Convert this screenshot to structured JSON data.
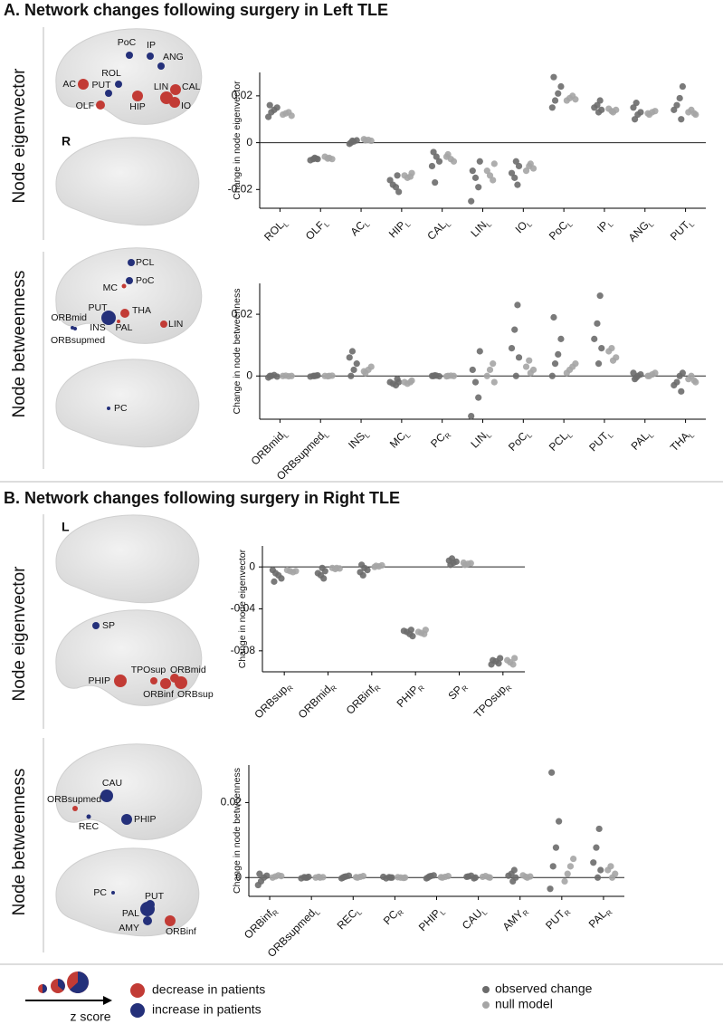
{
  "sections": [
    {
      "title": "A. Network changes following surgery in Left TLE",
      "hemisphere": "R"
    },
    {
      "title": "B. Network changes following surgery in Right TLE",
      "hemisphere": "L"
    }
  ],
  "legend": {
    "z_label": "z score",
    "nodes": [
      {
        "label": "decrease in patients",
        "color": "#c23b35"
      },
      {
        "label": "increase in patients",
        "color": "#24307a"
      }
    ],
    "series": [
      {
        "name": "observed change",
        "color": "#6b6b6b"
      },
      {
        "name": "null model",
        "color": "#a5a5a5"
      }
    ]
  },
  "chart_data": [
    {
      "type": "strip",
      "row_label": "Node eigenvector",
      "ylabel": "Change in node eigenvector",
      "ylim": [
        -0.028,
        0.03
      ],
      "yticks": [
        -0.02,
        0,
        0.02
      ],
      "zero_line": true,
      "categories": [
        "ROL",
        "OLF",
        "AC",
        "HIP",
        "CAL",
        "LIN",
        "IO",
        "PoC",
        "IP",
        "ANG",
        "PUT"
      ],
      "subscripts": [
        "L",
        "L",
        "L",
        "L",
        "L",
        "L",
        "L",
        "L",
        "L",
        "L",
        "L"
      ],
      "series": [
        {
          "color": "#6b6b6b",
          "values": [
            [
              0.011,
              0.013,
              0.014,
              0.015,
              0.016
            ],
            [
              -0.0065,
              -0.007,
              -0.0075,
              -0.007,
              -0.0068
            ],
            [
              0.0,
              0.0005,
              0.001,
              -0.0005,
              0.0008
            ],
            [
              -0.014,
              -0.016,
              -0.018,
              -0.019,
              -0.021
            ],
            [
              -0.004,
              -0.006,
              -0.008,
              -0.01,
              -0.017
            ],
            [
              -0.008,
              -0.012,
              -0.015,
              -0.019,
              -0.025
            ],
            [
              -0.008,
              -0.01,
              -0.013,
              -0.015,
              -0.018
            ],
            [
              0.015,
              0.018,
              0.021,
              0.024,
              0.028
            ],
            [
              0.013,
              0.014,
              0.015,
              0.016,
              0.018
            ],
            [
              0.01,
              0.012,
              0.013,
              0.015,
              0.017
            ],
            [
              0.01,
              0.014,
              0.016,
              0.019,
              0.024
            ]
          ]
        },
        {
          "color": "#a5a5a5",
          "values": [
            [
              0.012,
              0.0125,
              0.013,
              0.0115
            ],
            [
              -0.0065,
              -0.007,
              -0.006,
              -0.0068
            ],
            [
              0.001,
              0.0012,
              0.0008,
              0.0015
            ],
            [
              -0.013,
              -0.014,
              -0.015,
              -0.0145
            ],
            [
              -0.005,
              -0.007,
              -0.008,
              -0.006
            ],
            [
              -0.009,
              -0.012,
              -0.014,
              -0.016
            ],
            [
              -0.009,
              -0.011,
              -0.012,
              -0.01
            ],
            [
              0.018,
              0.019,
              0.02,
              0.0185
            ],
            [
              0.013,
              0.014,
              0.0145,
              0.0135
            ],
            [
              0.012,
              0.013,
              0.0135,
              0.0125
            ],
            [
              0.012,
              0.013,
              0.014,
              0.0125
            ]
          ]
        }
      ],
      "nodes": [
        {
          "label": "PoC",
          "color": "#24307a"
        },
        {
          "label": "IP",
          "color": "#24307a"
        },
        {
          "label": "ANG",
          "color": "#24307a"
        },
        {
          "label": "ROL",
          "color": "#24307a"
        },
        {
          "label": "AC",
          "color": "#c23b35"
        },
        {
          "label": "PUT",
          "color": "#24307a"
        },
        {
          "label": "LIN",
          "color": "#c23b35"
        },
        {
          "label": "CAL",
          "color": "#c23b35"
        },
        {
          "label": "HIP",
          "color": "#c23b35"
        },
        {
          "label": "OLF",
          "color": "#c23b35"
        },
        {
          "label": "IO",
          "color": "#c23b35"
        }
      ]
    },
    {
      "type": "strip",
      "row_label": "Node betweenness",
      "ylabel": "Change in node betweenness",
      "ylim": [
        -0.014,
        0.03
      ],
      "yticks": [
        0,
        0.02
      ],
      "zero_line": true,
      "categories": [
        "ORBmid",
        "ORBsupmed",
        "INS",
        "MC",
        "PC",
        "LIN",
        "PoC",
        "PCL",
        "PUT",
        "PAL",
        "THA"
      ],
      "subscripts": [
        "L",
        "L",
        "L",
        "L",
        "R",
        "L",
        "L",
        "L",
        "L",
        "L",
        "L"
      ],
      "series": [
        {
          "color": "#6b6b6b",
          "values": [
            [
              -0.0005,
              0,
              0.0003,
              -0.0002,
              0
            ],
            [
              0,
              0.0002,
              -0.0002,
              0,
              0.0001
            ],
            [
              0,
              0.002,
              0.004,
              0.006,
              0.008
            ],
            [
              -0.001,
              -0.002,
              -0.0025,
              -0.003,
              -0.002
            ],
            [
              0,
              0.0001,
              -0.0001,
              0,
              0.0002
            ],
            [
              0.008,
              0.002,
              -0.002,
              -0.007,
              -0.013
            ],
            [
              0,
              0.006,
              0.009,
              0.015,
              0.023
            ],
            [
              0,
              0.004,
              0.007,
              0.012,
              0.019
            ],
            [
              0.004,
              0.009,
              0.012,
              0.017,
              0.026
            ],
            [
              -0.001,
              0,
              0.0005,
              0.001,
              -0.0005
            ],
            [
              -0.005,
              -0.003,
              -0.002,
              0,
              0.001
            ]
          ]
        },
        {
          "color": "#a5a5a5",
          "values": [
            [
              0,
              0.0001,
              -0.0001,
              0
            ],
            [
              0,
              0.0001,
              0,
              -0.0001
            ],
            [
              0.001,
              0.002,
              0.003,
              0.0015
            ],
            [
              -0.0015,
              -0.002,
              -0.0025,
              -0.002
            ],
            [
              0,
              0.0001,
              0,
              -0.0001
            ],
            [
              -0.002,
              0,
              0.002,
              0.004
            ],
            [
              0.001,
              0.002,
              0.003,
              0.005
            ],
            [
              0.001,
              0.002,
              0.003,
              0.004
            ],
            [
              0.005,
              0.006,
              0.008,
              0.009
            ],
            [
              0,
              0.0005,
              0.001,
              0
            ],
            [
              -0.002,
              -0.001,
              0,
              -0.0015
            ]
          ]
        }
      ],
      "nodes": [
        {
          "label": "PCL",
          "color": "#24307a"
        },
        {
          "label": "PoC",
          "color": "#24307a"
        },
        {
          "label": "MC",
          "color": "#c23b35"
        },
        {
          "label": "PUT",
          "color": "#24307a"
        },
        {
          "label": "INS",
          "color": "#24307a"
        },
        {
          "label": "THA",
          "color": "#c23b35"
        },
        {
          "label": "PAL",
          "color": "#c23b35"
        },
        {
          "label": "ORBmid",
          "color": "#24307a"
        },
        {
          "label": "ORBsupmed",
          "color": "#24307a"
        },
        {
          "label": "LIN",
          "color": "#c23b35"
        },
        {
          "label": "PC",
          "color": "#24307a"
        }
      ]
    },
    {
      "type": "strip",
      "row_label": "Node eigenvector",
      "ylabel": "Change in node eigenvector",
      "ylim": [
        -0.1,
        0.02
      ],
      "yticks": [
        -0.08,
        -0.04,
        0
      ],
      "zero_line": true,
      "categories": [
        "ORBsup",
        "ORBmid",
        "ORBinf",
        "PHIP",
        "SP",
        "TPOsup"
      ],
      "subscripts": [
        "R",
        "R",
        "R",
        "R",
        "R",
        "R"
      ],
      "series": [
        {
          "color": "#6b6b6b",
          "values": [
            [
              -0.003,
              -0.006,
              -0.008,
              -0.011,
              -0.014
            ],
            [
              -0.001,
              -0.004,
              -0.006,
              -0.008,
              -0.011
            ],
            [
              0.002,
              -0.001,
              -0.003,
              -0.005,
              -0.008
            ],
            [
              -0.06,
              -0.061,
              -0.062,
              -0.064,
              -0.066
            ],
            [
              0.002,
              0.004,
              0.005,
              0.006,
              0.008
            ],
            [
              -0.087,
              -0.089,
              -0.09,
              -0.092,
              -0.093
            ]
          ]
        },
        {
          "color": "#a5a5a5",
          "values": [
            [
              -0.003,
              -0.004,
              -0.005,
              -0.004
            ],
            [
              -0.001,
              -0.0015,
              -0.001,
              -0.002
            ],
            [
              0.001,
              0.0005,
              0.0015,
              0
            ],
            [
              -0.06,
              -0.062,
              -0.063,
              -0.064
            ],
            [
              0.002,
              0.003,
              0.0035,
              0.004
            ],
            [
              -0.087,
              -0.089,
              -0.091,
              -0.093
            ]
          ]
        }
      ],
      "nodes": [
        {
          "label": "SP",
          "color": "#24307a"
        },
        {
          "label": "TPOsup",
          "color": "#c23b35"
        },
        {
          "label": "ORBmid",
          "color": "#c23b35"
        },
        {
          "label": "PHIP",
          "color": "#c23b35"
        },
        {
          "label": "ORBinf",
          "color": "#c23b35"
        },
        {
          "label": "ORBsup",
          "color": "#c23b35"
        }
      ]
    },
    {
      "type": "strip",
      "row_label": "Node betweenness",
      "ylabel": "Change in node betweenness",
      "ylim": [
        -0.005,
        0.03
      ],
      "yticks": [
        0,
        0.02
      ],
      "zero_line": true,
      "categories": [
        "ORBinf",
        "ORBsupmed",
        "REC",
        "PC",
        "PHIP",
        "CAU",
        "AMY",
        "PUT",
        "PAL"
      ],
      "subscripts": [
        "R",
        "L",
        "L",
        "R",
        "L",
        "L",
        "R",
        "R",
        "R"
      ],
      "series": [
        {
          "color": "#6b6b6b",
          "values": [
            [
              -0.002,
              -0.001,
              0,
              0.0005,
              0.001
            ],
            [
              0,
              0.0002,
              -0.0002,
              0.0001,
              0
            ],
            [
              0,
              0.0003,
              0.0005,
              -0.0002,
              0.0002
            ],
            [
              0,
              0.0002,
              -0.0002,
              0.0001,
              0
            ],
            [
              0,
              0.0004,
              0.0006,
              -0.0002,
              0.0003
            ],
            [
              0,
              0.0003,
              0.0005,
              -0.0002,
              0.0002
            ],
            [
              -0.001,
              0,
              0.0005,
              0.001,
              0.002
            ],
            [
              -0.003,
              0.003,
              0.008,
              0.015,
              0.028
            ],
            [
              0,
              0.002,
              0.004,
              0.008,
              0.013
            ]
          ]
        },
        {
          "color": "#a5a5a5",
          "values": [
            [
              0,
              0.0003,
              0.0006,
              0.0004
            ],
            [
              0,
              0.0001,
              0,
              0.0002
            ],
            [
              0,
              0.0002,
              0.0004,
              0.0001
            ],
            [
              0,
              0.0001,
              0,
              -0.0001
            ],
            [
              0,
              0.0002,
              0.0004,
              0.0001
            ],
            [
              0,
              0.0002,
              0.0004,
              0.0001
            ],
            [
              0,
              0.0003,
              0.0006,
              0.0002
            ],
            [
              -0.001,
              0.001,
              0.003,
              0.005
            ],
            [
              0,
              0.001,
              0.002,
              0.003
            ]
          ]
        }
      ],
      "nodes": [
        {
          "label": "CAU",
          "color": "#24307a"
        },
        {
          "label": "ORBsupmed",
          "color": "#c23b35"
        },
        {
          "label": "REC",
          "color": "#24307a"
        },
        {
          "label": "PHIP",
          "color": "#24307a"
        },
        {
          "label": "PC",
          "color": "#24307a"
        },
        {
          "label": "PUT",
          "color": "#24307a"
        },
        {
          "label": "PAL",
          "color": "#24307a"
        },
        {
          "label": "AMY",
          "color": "#24307a"
        },
        {
          "label": "ORBinf",
          "color": "#c23b35"
        }
      ]
    }
  ]
}
